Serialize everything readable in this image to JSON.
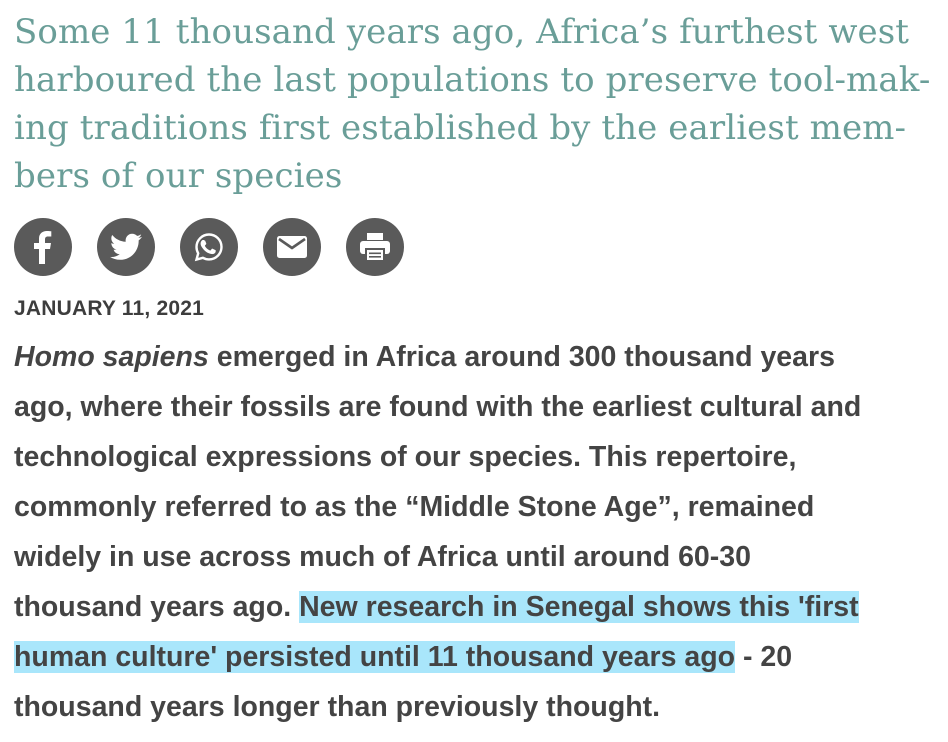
{
  "article": {
    "headline_lines": [
      "Some 11 thousand years ago, Africa’s furthest west",
      "harboured the last populations to preserve tool-mak-",
      "ing traditions first established by the earliest mem-",
      "bers of our species"
    ],
    "share": {
      "icons": [
        "facebook-icon",
        "twitter-icon",
        "whatsapp-icon",
        "email-icon",
        "print-icon"
      ]
    },
    "date": "JANUARY 11, 2021",
    "body": {
      "line1_italic": "Homo sapiens",
      "line1_rest": " emerged in Africa around 300 thousand years",
      "line2": "ago, where their fossils are found with the earliest cultural and",
      "line3": "technological expressions of our species. This repertoire,",
      "line4": "commonly referred to as the “Middle Stone Age”, remained",
      "line5": "widely in use across much of Africa until around 60-30",
      "line6_plain": "thousand years ago. ",
      "line6_highlight": "New research in Senegal shows this 'first",
      "line7_highlight": "human culture' persisted until 11 thousand years ago",
      "line7_plain": " - 20",
      "line8": "thousand years longer than previously thought."
    },
    "highlight_color": "#a9e6fb",
    "headline_color": "#6a9e98"
  }
}
